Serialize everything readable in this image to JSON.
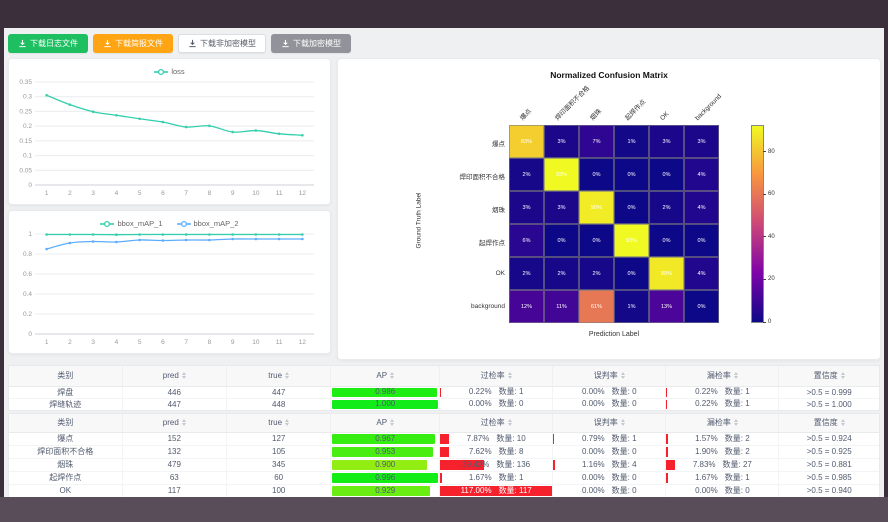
{
  "frame": {
    "top_bar_color": "#3b2f3c",
    "bottom_bar_color": "#594d59"
  },
  "toolbar": {
    "buttons": [
      {
        "id": "download-log-file",
        "label": "下载日志文件",
        "variant": "green"
      },
      {
        "id": "download-report-file",
        "label": "下载简报文件",
        "variant": "orange"
      },
      {
        "id": "download-plain-model",
        "label": "下载非加密模型",
        "variant": "white"
      },
      {
        "id": "download-encrypted-model",
        "label": "下载加密模型",
        "variant": "gray"
      }
    ]
  },
  "chart_data": [
    {
      "id": "loss",
      "type": "line",
      "x": [
        1,
        2,
        3,
        4,
        5,
        6,
        7,
        8,
        9,
        10,
        11,
        12
      ],
      "y_ticks": [
        0,
        0.05,
        0.1,
        0.15,
        0.2,
        0.25,
        0.3,
        0.35
      ],
      "ylim": [
        0,
        0.35
      ],
      "grid": true,
      "legend_position": "top",
      "series": [
        {
          "name": "loss",
          "color": "#33cfad",
          "values": [
            0.305,
            0.273,
            0.249,
            0.237,
            0.225,
            0.214,
            0.197,
            0.201,
            0.18,
            0.185,
            0.174,
            0.169
          ]
        }
      ]
    },
    {
      "id": "bbox_map",
      "type": "line",
      "x": [
        1,
        2,
        3,
        4,
        5,
        6,
        7,
        8,
        9,
        10,
        11,
        12
      ],
      "y_ticks": [
        0,
        0.2,
        0.4,
        0.6,
        0.8,
        1
      ],
      "ylim": [
        0,
        1
      ],
      "grid": true,
      "legend_position": "top",
      "series": [
        {
          "name": "bbox_mAP_1",
          "color": "#33cfad",
          "values": [
            0.995,
            0.995,
            0.995,
            0.993,
            0.995,
            0.995,
            0.995,
            0.995,
            0.995,
            0.995,
            0.995,
            0.995
          ]
        },
        {
          "name": "bbox_mAP_2",
          "color": "#5cadff",
          "values": [
            0.85,
            0.91,
            0.925,
            0.92,
            0.94,
            0.935,
            0.94,
            0.94,
            0.95,
            0.95,
            0.95,
            0.95
          ]
        }
      ]
    },
    {
      "id": "confusion_matrix",
      "type": "heatmap",
      "title": "Normalized Confusion Matrix",
      "xlabel": "Prediction Label",
      "ylabel": "Ground Truth Label",
      "classes": [
        "爆点",
        "焊印面积不合格",
        "烟珠",
        "起焊作点",
        "OK",
        "background"
      ],
      "unit": "%",
      "vmax": 93,
      "colorbar_ticks": [
        0,
        20,
        40,
        60,
        80
      ],
      "matrix": [
        [
          83,
          3,
          7,
          1,
          3,
          3
        ],
        [
          2,
          93,
          0,
          0,
          0,
          4
        ],
        [
          3,
          3,
          90,
          0,
          2,
          4
        ],
        [
          6,
          0,
          0,
          93,
          0,
          0
        ],
        [
          2,
          2,
          2,
          0,
          89,
          4
        ],
        [
          12,
          11,
          61,
          1,
          13,
          0
        ]
      ]
    }
  ],
  "tables": {
    "columns": [
      {
        "key": "class",
        "label": "类别",
        "sortable": false
      },
      {
        "key": "pred",
        "label": "pred",
        "sortable": true
      },
      {
        "key": "true",
        "label": "true",
        "sortable": true
      },
      {
        "key": "ap",
        "label": "AP",
        "sortable": true
      },
      {
        "key": "over",
        "label": "过检率",
        "sortable": true
      },
      {
        "key": "mis",
        "label": "误判率",
        "sortable": true
      },
      {
        "key": "miss",
        "label": "漏检率",
        "sortable": true
      },
      {
        "key": "conf",
        "label": "置信度",
        "sortable": true
      }
    ],
    "count_label": "数量",
    "table1": {
      "rows": [
        {
          "class": "焊盘",
          "pred": 446,
          "true": 447,
          "ap": "0.986",
          "over": {
            "pct": "0.22%",
            "count": 1
          },
          "mis": {
            "pct": "0.00%",
            "count": 0
          },
          "miss": {
            "pct": "0.22%",
            "count": 1
          },
          "conf": ">0.5 = 0.999"
        },
        {
          "class": "焊缝轨迹",
          "pred": 447,
          "true": 448,
          "ap": "1.000",
          "over": {
            "pct": "0.00%",
            "count": 0
          },
          "mis": {
            "pct": "0.00%",
            "count": 0
          },
          "miss": {
            "pct": "0.22%",
            "count": 1
          },
          "conf": ">0.5 = 1.000"
        }
      ]
    },
    "table2": {
      "rows": [
        {
          "class": "爆点",
          "pred": 152,
          "true": 127,
          "ap": "0.967",
          "over": {
            "pct": "7.87%",
            "count": 10
          },
          "mis": {
            "pct": "0.79%",
            "count": 1
          },
          "miss": {
            "pct": "1.57%",
            "count": 2
          },
          "conf": ">0.5 = 0.924"
        },
        {
          "class": "焊印面积不合格",
          "pred": 132,
          "true": 105,
          "ap": "0.953",
          "over": {
            "pct": "7.62%",
            "count": 8
          },
          "mis": {
            "pct": "0.00%",
            "count": 0
          },
          "miss": {
            "pct": "1.90%",
            "count": 2
          },
          "conf": ">0.5 = 0.925"
        },
        {
          "class": "烟珠",
          "pred": 479,
          "true": 345,
          "ap": "0.900",
          "over": {
            "pct": "39.42%",
            "count": 136
          },
          "mis": {
            "pct": "1.16%",
            "count": 4
          },
          "miss": {
            "pct": "7.83%",
            "count": 27
          },
          "conf": ">0.5 = 0.881"
        },
        {
          "class": "起焊作点",
          "pred": 63,
          "true": 60,
          "ap": "0.996",
          "over": {
            "pct": "1.67%",
            "count": 1
          },
          "mis": {
            "pct": "0.00%",
            "count": 0
          },
          "miss": {
            "pct": "1.67%",
            "count": 1
          },
          "conf": ">0.5 = 0.985"
        },
        {
          "class": "OK",
          "pred": 117,
          "true": 100,
          "ap": "0.929",
          "over": {
            "pct": "117.00%",
            "count": 117
          },
          "mis": {
            "pct": "0.00%",
            "count": 0
          },
          "miss": {
            "pct": "0.00%",
            "count": 0
          },
          "conf": ">0.5 = 0.940"
        }
      ]
    }
  }
}
